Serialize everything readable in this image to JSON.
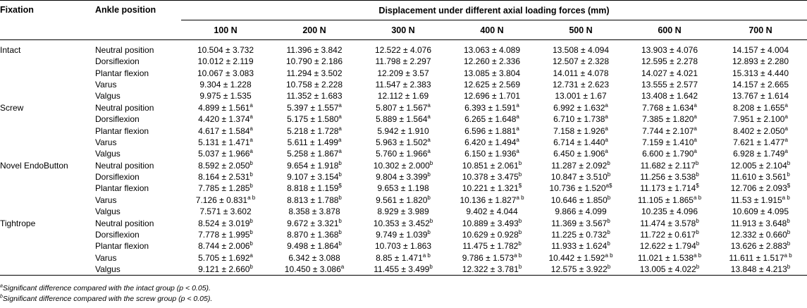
{
  "header": {
    "fixation": "Fixation",
    "ankle_position": "Ankle position",
    "span_title": "Displacement under different axial loading forces (mm)",
    "forces": [
      "100 N",
      "200 N",
      "300 N",
      "400 N",
      "500 N",
      "600 N",
      "700 N"
    ]
  },
  "groups": [
    {
      "name": "Intact",
      "rows": [
        {
          "position": "Neutral position",
          "cells": [
            [
              "10.504 ± 3.732",
              ""
            ],
            [
              "11.396 ± 3.842",
              ""
            ],
            [
              "12.522 ± 4.076",
              ""
            ],
            [
              "13.063 ± 4.089",
              ""
            ],
            [
              "13.508 ± 4.094",
              ""
            ],
            [
              "13.903 ± 4.076",
              ""
            ],
            [
              "14.157 ± 4.004",
              ""
            ]
          ]
        },
        {
          "position": "Dorsiflexion",
          "cells": [
            [
              "10.012 ± 2.119",
              ""
            ],
            [
              "10.790 ± 2.186",
              ""
            ],
            [
              "11.798 ± 2.297",
              ""
            ],
            [
              "12.260 ± 2.336",
              ""
            ],
            [
              "12.507 ± 2.328",
              ""
            ],
            [
              "12.595 ± 2.278",
              ""
            ],
            [
              "12.893 ± 2.280",
              ""
            ]
          ]
        },
        {
          "position": "Plantar flexion",
          "cells": [
            [
              "10.067 ± 3.083",
              ""
            ],
            [
              "11.294 ± 3.502",
              ""
            ],
            [
              "12.209 ± 3.57",
              ""
            ],
            [
              "13.085 ± 3.804",
              ""
            ],
            [
              "14.011 ± 4.078",
              ""
            ],
            [
              "14.027 ± 4.021",
              ""
            ],
            [
              "15.313 ± 4.440",
              ""
            ]
          ]
        },
        {
          "position": "Varus",
          "cells": [
            [
              "9.304 ± 1.228",
              ""
            ],
            [
              "10.758 ± 2.228",
              ""
            ],
            [
              "11.547 ± 2.383",
              ""
            ],
            [
              "12.625 ± 2.569",
              ""
            ],
            [
              "12.731 ± 2.623",
              ""
            ],
            [
              "13.555 ± 2.577",
              ""
            ],
            [
              "14.157 ± 2.665",
              ""
            ]
          ]
        },
        {
          "position": "Valgus",
          "cells": [
            [
              "9.975 ± 1.535",
              ""
            ],
            [
              "11.352 ± 1.683",
              ""
            ],
            [
              "12.112 ± 1.69",
              ""
            ],
            [
              "12.696 ± 1.701",
              ""
            ],
            [
              "13.001 ± 1.67",
              ""
            ],
            [
              "13.408 ± 1.642",
              ""
            ],
            [
              "13.767 ± 1.614",
              ""
            ]
          ]
        }
      ]
    },
    {
      "name": "Screw",
      "rows": [
        {
          "position": "Neutral position",
          "cells": [
            [
              "4.899 ± 1.561",
              "a"
            ],
            [
              "5.397 ± 1.557",
              "a"
            ],
            [
              "5.807 ± 1.567",
              "a"
            ],
            [
              "6.393 ± 1.591",
              "a"
            ],
            [
              "6.992 ± 1.632",
              "a"
            ],
            [
              "7.768 ± 1.634",
              "a"
            ],
            [
              "8.208 ± 1.655",
              "a"
            ]
          ]
        },
        {
          "position": "Dorsiflexion",
          "cells": [
            [
              "4.420 ± 1.374",
              "a"
            ],
            [
              "5.175 ± 1.580",
              "a"
            ],
            [
              "5.889 ± 1.564",
              "a"
            ],
            [
              "6.265 ± 1.648",
              "a"
            ],
            [
              "6.710 ± 1.738",
              "a"
            ],
            [
              "7.385 ± 1.820",
              "a"
            ],
            [
              "7.951 ± 2.100",
              "a"
            ]
          ]
        },
        {
          "position": "Plantar flexion",
          "cells": [
            [
              "4.617 ± 1.584",
              "a"
            ],
            [
              "5.218 ± 1.728",
              "a"
            ],
            [
              "5.942 ± 1.910",
              ""
            ],
            [
              "6.596 ± 1.881",
              "a"
            ],
            [
              "7.158 ± 1.926",
              "a"
            ],
            [
              "7.744 ± 2.107",
              "a"
            ],
            [
              "8.402 ± 2.050",
              "a"
            ]
          ]
        },
        {
          "position": "Varus",
          "cells": [
            [
              "5.131 ± 1.471",
              "a"
            ],
            [
              "5.611 ± 1.499",
              "a"
            ],
            [
              "5.963 ± 1.502",
              "a"
            ],
            [
              "6.420 ± 1.494",
              "a"
            ],
            [
              "6.714 ± 1.440",
              "a"
            ],
            [
              "7.159 ± 1.410",
              "a"
            ],
            [
              "7.621 ± 1.477",
              "a"
            ]
          ]
        },
        {
          "position": "Valgus",
          "cells": [
            [
              "5.037 ± 1.966",
              "a"
            ],
            [
              "5.258 ± 1.867",
              "a"
            ],
            [
              "5.760 ± 1.966",
              "a"
            ],
            [
              "6.150 ± 1.936",
              "a"
            ],
            [
              "6.450 ± 1.906",
              "a"
            ],
            [
              "6.600 ± 1.790",
              "a"
            ],
            [
              "6.928 ± 1.749",
              "a"
            ]
          ]
        }
      ]
    },
    {
      "name": "Novel EndoButton",
      "rows": [
        {
          "position": "Neutral position",
          "cells": [
            [
              "8.592 ± 2.050",
              "b"
            ],
            [
              "9.654 ± 1.918",
              "b"
            ],
            [
              "10.302 ± 2.000",
              "b"
            ],
            [
              "10.851 ± 2.061",
              "b"
            ],
            [
              "11.287 ± 2.092",
              "b"
            ],
            [
              "11.682 ± 2.117",
              "b"
            ],
            [
              "12.005 ± 2.104",
              "b"
            ]
          ]
        },
        {
          "position": "Dorsiflexion",
          "cells": [
            [
              "8.164 ± 2.531",
              "b"
            ],
            [
              "9.107 ± 3.154",
              "b"
            ],
            [
              "9.804 ± 3.399",
              "b"
            ],
            [
              "10.378 ± 3.475",
              "b"
            ],
            [
              "10.847 ± 3.510",
              "b"
            ],
            [
              "11.256 ± 3.538",
              "b"
            ],
            [
              "11.610 ± 3.561",
              "b"
            ]
          ]
        },
        {
          "position": "Plantar flexion",
          "cells": [
            [
              "7.785 ± 1.285",
              "b"
            ],
            [
              "8.818 ± 1.159",
              "$"
            ],
            [
              "9.653 ± 1.198",
              ""
            ],
            [
              "10.221 ± 1.321",
              "$"
            ],
            [
              "10.736 ± 1.520",
              "a$"
            ],
            [
              "11.173 ± 1.714",
              "$"
            ],
            [
              "12.706 ± 2.093",
              "$"
            ]
          ]
        },
        {
          "position": "Varus",
          "cells": [
            [
              "7.126 ± 0.831",
              "a b"
            ],
            [
              "8.813 ± 1.788",
              "b"
            ],
            [
              "9.561 ± 1.820",
              "b"
            ],
            [
              "10.136 ± 1.827",
              "a b"
            ],
            [
              "10.646 ± 1.850",
              "b"
            ],
            [
              "11.105 ± 1.865",
              "a b"
            ],
            [
              "11.53 ± 1.915",
              "a b"
            ]
          ]
        },
        {
          "position": "Valgus",
          "cells": [
            [
              "7.571 ± 3.602",
              ""
            ],
            [
              "8.358 ± 3.878",
              ""
            ],
            [
              "8.929 ± 3.989",
              ""
            ],
            [
              "9.402 ± 4.044",
              ""
            ],
            [
              "9.866 ± 4.099",
              ""
            ],
            [
              "10.235 ± 4.096",
              ""
            ],
            [
              "10.609 ± 4.095",
              ""
            ]
          ]
        }
      ]
    },
    {
      "name": "Tightrope",
      "rows": [
        {
          "position": "Neutral position",
          "cells": [
            [
              "8.524 ± 3.019",
              "b"
            ],
            [
              "9.672 ± 3.321",
              "b"
            ],
            [
              "10.353 ± 3.452",
              "b"
            ],
            [
              "10.889 ± 3.493",
              "b"
            ],
            [
              "11.369 ± 3.567",
              "b"
            ],
            [
              "11.474 ± 3.578",
              "b"
            ],
            [
              "11.913 ± 3.648",
              "b"
            ]
          ]
        },
        {
          "position": "Dorsiflexion",
          "cells": [
            [
              "7.778 ± 1.995",
              "b"
            ],
            [
              "8.870 ± 1.368",
              "b"
            ],
            [
              "9.749 ± 1.039",
              "b"
            ],
            [
              "10.629 ± 0.928",
              "b"
            ],
            [
              "11.225 ± 0.732",
              "b"
            ],
            [
              "11.722 ± 0.617",
              "b"
            ],
            [
              "12.332 ± 0.660",
              "b"
            ]
          ]
        },
        {
          "position": "Plantar flexion",
          "cells": [
            [
              "8.744 ± 2.006",
              "b"
            ],
            [
              "9.498 ± 1.864",
              "b"
            ],
            [
              "10.703 ± 1.863",
              ""
            ],
            [
              "11.475 ± 1.782",
              "b"
            ],
            [
              "11.933 ± 1.624",
              "b"
            ],
            [
              "12.622 ± 1.794",
              "b"
            ],
            [
              "13.626 ± 2.883",
              "b"
            ]
          ]
        },
        {
          "position": "Varus",
          "cells": [
            [
              "5.705 ± 1.692",
              "a"
            ],
            [
              "6.342 ± 3.088",
              ""
            ],
            [
              "8.85 ± 1.471",
              "a b"
            ],
            [
              "9.786 ± 1.573",
              "a b"
            ],
            [
              "10.442 ± 1.592",
              "a b"
            ],
            [
              "11.021 ± 1.538",
              "a b"
            ],
            [
              "11.611 ± 1.517",
              "a b"
            ]
          ]
        },
        {
          "position": "Valgus",
          "cells": [
            [
              "9.121 ± 2.660",
              "b"
            ],
            [
              "10.450 ± 3.086",
              "a"
            ],
            [
              "11.455 ± 3.499",
              "b"
            ],
            [
              "12.322 ± 3.781",
              "b"
            ],
            [
              "12.575 ± 3.922",
              "b"
            ],
            [
              "13.005 ± 4.022",
              "b"
            ],
            [
              "13.848 ± 4.213",
              "b"
            ]
          ]
        }
      ]
    }
  ],
  "footnotes": [
    {
      "mark": "a",
      "text": "Significant difference compared with the intact group (p < 0.05)."
    },
    {
      "mark": "b",
      "text": "Significant difference compared with the screw group (p < 0.05)."
    }
  ]
}
